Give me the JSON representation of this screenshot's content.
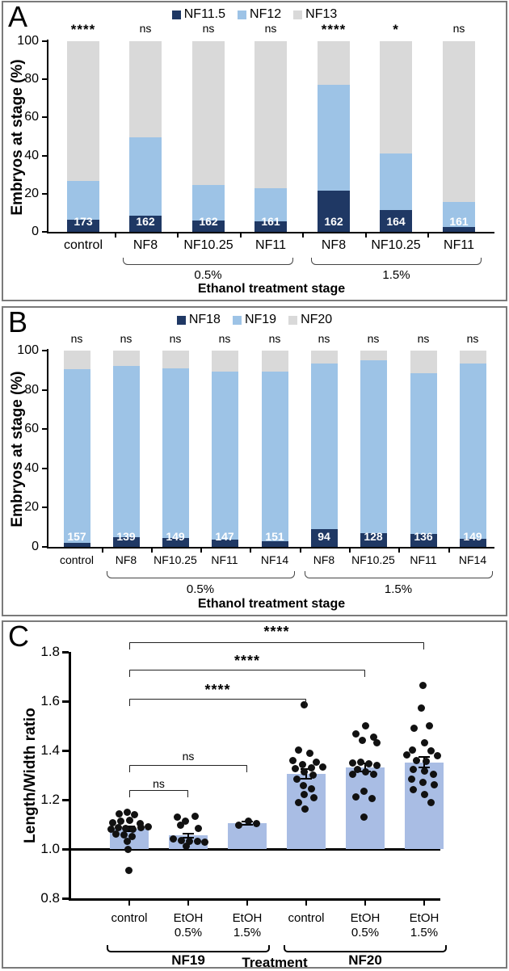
{
  "chart_data": [
    {
      "id": "A",
      "panel_label": "A",
      "type": "stacked-bar",
      "legend": [
        "NF11.5",
        "NF12",
        "NF13"
      ],
      "colors": [
        "#1f3864",
        "#9dc3e6",
        "#d9d9d9"
      ],
      "ylabel": "Embryos at stage (%)",
      "xlabel": "Ethanol treatment stage",
      "ylim": [
        0,
        100
      ],
      "yticks": [
        0,
        20,
        40,
        60,
        80,
        100
      ],
      "categories": [
        "control",
        "NF8",
        "NF10.25",
        "NF11",
        "NF8",
        "NF10.25",
        "NF11"
      ],
      "significance": [
        "****",
        "ns",
        "ns",
        "ns",
        "****",
        "*",
        "ns"
      ],
      "n_labels": [
        "173",
        "162",
        "162",
        "161",
        "162",
        "164",
        "161"
      ],
      "series": [
        {
          "name": "NF11.5",
          "values": [
            6.5,
            8.5,
            6,
            5.5,
            21.5,
            11.5,
            2.5
          ]
        },
        {
          "name": "NF12",
          "values": [
            20,
            41,
            18.5,
            17.5,
            55.5,
            29.5,
            13
          ]
        },
        {
          "name": "NF13",
          "values": [
            73.5,
            50.5,
            75.5,
            77,
            23,
            59,
            84.5
          ]
        }
      ],
      "group_brackets": [
        {
          "label": "0.5%",
          "from": 1,
          "to": 3
        },
        {
          "label": "1.5%",
          "from": 4,
          "to": 6
        }
      ]
    },
    {
      "id": "B",
      "panel_label": "B",
      "type": "stacked-bar",
      "legend": [
        "NF18",
        "NF19",
        "NF20"
      ],
      "colors": [
        "#1f3864",
        "#9dc3e6",
        "#d9d9d9"
      ],
      "ylabel": "Embryos at stage (%)",
      "xlabel": "Ethanol treatment stage",
      "ylim": [
        0,
        100
      ],
      "yticks": [
        0,
        20,
        40,
        60,
        80,
        100
      ],
      "categories": [
        "control",
        "NF8",
        "NF10.25",
        "NF11",
        "NF14",
        "NF8",
        "NF10.25",
        "NF11",
        "NF14"
      ],
      "significance": [
        "ns",
        "ns",
        "ns",
        "ns",
        "ns",
        "ns",
        "ns",
        "ns",
        "ns"
      ],
      "n_labels": [
        "157",
        "139",
        "149",
        "147",
        "151",
        "94",
        "128",
        "136",
        "149"
      ],
      "series": [
        {
          "name": "NF18",
          "values": [
            2,
            5,
            4.5,
            3.5,
            3,
            9,
            7,
            6.5,
            4
          ]
        },
        {
          "name": "NF19",
          "values": [
            88.5,
            87,
            86.5,
            86,
            86.5,
            84.5,
            88,
            82,
            89.5
          ]
        },
        {
          "name": "NF20",
          "values": [
            9.5,
            8,
            9,
            10.5,
            10.5,
            6.5,
            5,
            11.5,
            6.5
          ]
        }
      ],
      "group_brackets": [
        {
          "label": "0.5%",
          "from": 1,
          "to": 4
        },
        {
          "label": "1.5%",
          "from": 5,
          "to": 8
        }
      ]
    },
    {
      "id": "C",
      "panel_label": "C",
      "type": "bar-scatter",
      "ylabel": "Length/Width ratio",
      "xlabel": "Treatment",
      "bar_color": "#a9bde4",
      "point_color": "#111111",
      "ylim": [
        0.8,
        1.8
      ],
      "yticks": [
        "0.8",
        "1.0",
        "1.2",
        "1.4",
        "1.6",
        "1.8"
      ],
      "baseline": 1.0,
      "categories": [
        [
          "control"
        ],
        [
          "EtOH",
          "0.5%"
        ],
        [
          "EtOH",
          "1.5%"
        ],
        [
          "control"
        ],
        [
          "EtOH",
          "0.5%"
        ],
        [
          "EtOH",
          "1.5%"
        ]
      ],
      "means": [
        1.082,
        1.055,
        1.105,
        1.305,
        1.33,
        1.352
      ],
      "errors": [
        0.013,
        0.012,
        0.01,
        0.023,
        0.02,
        0.024
      ],
      "points": [
        [
          [
            -13,
            1.143
          ],
          [
            -3,
            1.15
          ],
          [
            6,
            1.14
          ],
          [
            -21,
            1.105
          ],
          [
            -11,
            1.112
          ],
          [
            0,
            1.118
          ],
          [
            13,
            1.103
          ],
          [
            -23,
            1.08
          ],
          [
            -14,
            1.087
          ],
          [
            -5,
            1.085
          ],
          [
            4,
            1.079
          ],
          [
            14,
            1.086
          ],
          [
            23,
            1.09
          ],
          [
            -17,
            1.062
          ],
          [
            -7,
            1.057
          ],
          [
            3,
            1.052
          ],
          [
            -3,
            1.031
          ],
          [
            -2,
            0.998
          ],
          [
            -1,
            0.912
          ]
        ],
        [
          [
            -14,
            1.128
          ],
          [
            8,
            1.133
          ],
          [
            -4,
            1.112
          ],
          [
            -10,
            1.098
          ],
          [
            12,
            1.085
          ],
          [
            -19,
            1.04
          ],
          [
            -9,
            1.034
          ],
          [
            1,
            1.03
          ],
          [
            11,
            1.03
          ],
          [
            20,
            1.028
          ],
          [
            -3,
            1.01
          ]
        ],
        [
          [
            -11,
            1.098
          ],
          [
            1,
            1.113
          ],
          [
            11,
            1.102
          ]
        ],
        [
          [
            -3,
            1.585
          ],
          [
            -10,
            1.402
          ],
          [
            4,
            1.39
          ],
          [
            -17,
            1.36
          ],
          [
            12,
            1.352
          ],
          [
            -5,
            1.342
          ],
          [
            -14,
            1.325
          ],
          [
            6,
            1.33
          ],
          [
            20,
            1.332
          ],
          [
            -3,
            1.312
          ],
          [
            8,
            1.3
          ],
          [
            -12,
            1.283
          ],
          [
            -4,
            1.258
          ],
          [
            6,
            1.243
          ],
          [
            -3,
            1.222
          ],
          [
            9,
            1.208
          ],
          [
            -10,
            1.19
          ],
          [
            -2,
            1.162
          ]
        ],
        [
          [
            0,
            1.5
          ],
          [
            -12,
            1.468
          ],
          [
            10,
            1.455
          ],
          [
            -4,
            1.44
          ],
          [
            14,
            1.43
          ],
          [
            -16,
            1.35
          ],
          [
            -6,
            1.352
          ],
          [
            4,
            1.345
          ],
          [
            14,
            1.34
          ],
          [
            -10,
            1.322
          ],
          [
            0,
            1.312
          ],
          [
            -16,
            1.302
          ],
          [
            10,
            1.302
          ],
          [
            -2,
            1.235
          ],
          [
            -12,
            1.212
          ],
          [
            8,
            1.205
          ],
          [
            -2,
            1.13
          ]
        ],
        [
          [
            -2,
            1.663
          ],
          [
            -4,
            1.572
          ],
          [
            6,
            1.5
          ],
          [
            -13,
            1.49
          ],
          [
            0,
            1.432
          ],
          [
            -15,
            1.402
          ],
          [
            8,
            1.4
          ],
          [
            -22,
            1.382
          ],
          [
            16,
            1.378
          ],
          [
            -10,
            1.36
          ],
          [
            2,
            1.355
          ],
          [
            -14,
            1.322
          ],
          [
            0,
            1.315
          ],
          [
            11,
            1.302
          ],
          [
            -16,
            1.282
          ],
          [
            -2,
            1.27
          ],
          [
            12,
            1.26
          ],
          [
            -14,
            1.24
          ],
          [
            0,
            1.222
          ],
          [
            8,
            1.19
          ]
        ]
      ],
      "sig_brackets": [
        {
          "label": "****",
          "from": 0,
          "to": 5
        },
        {
          "label": "****",
          "from": 0,
          "to": 4
        },
        {
          "label": "****",
          "from": 0,
          "to": 3
        },
        {
          "label": "ns",
          "from": 0,
          "to": 2
        },
        {
          "label": "ns",
          "from": 0,
          "to": 1
        }
      ],
      "group_brackets": [
        {
          "label": "NF19",
          "from": 0,
          "to": 2
        },
        {
          "label": "NF20",
          "from": 3,
          "to": 5
        }
      ]
    }
  ]
}
